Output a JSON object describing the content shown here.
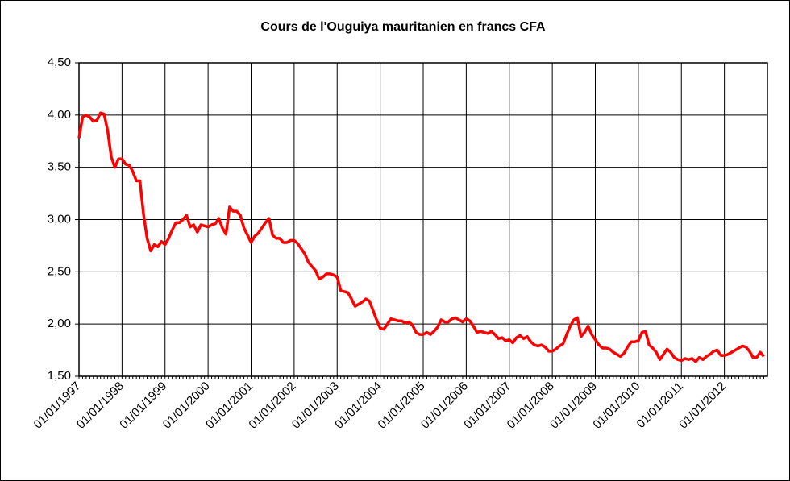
{
  "chart_data": {
    "type": "line",
    "title": "Cours de l'Ouguiya mauritanien en francs CFA",
    "categories": [
      "01/01/1997",
      null,
      null,
      null,
      null,
      null,
      null,
      null,
      null,
      null,
      null,
      null,
      "01/01/1998",
      null,
      null,
      null,
      null,
      null,
      null,
      null,
      null,
      null,
      null,
      null,
      "01/01/1999",
      null,
      null,
      null,
      null,
      null,
      null,
      null,
      null,
      null,
      null,
      null,
      "01/01/2000",
      null,
      null,
      null,
      null,
      null,
      null,
      null,
      null,
      null,
      null,
      null,
      "01/01/2001",
      null,
      null,
      null,
      null,
      null,
      null,
      null,
      null,
      null,
      null,
      null,
      "01/01/2002",
      null,
      null,
      null,
      null,
      null,
      null,
      null,
      null,
      null,
      null,
      null,
      "01/01/2003",
      null,
      null,
      null,
      null,
      null,
      null,
      null,
      null,
      null,
      null,
      null,
      "01/01/2004",
      null,
      null,
      null,
      null,
      null,
      null,
      null,
      null,
      null,
      null,
      null,
      "01/01/2005",
      null,
      null,
      null,
      null,
      null,
      null,
      null,
      null,
      null,
      null,
      null,
      "01/01/2006",
      null,
      null,
      null,
      null,
      null,
      null,
      null,
      null,
      null,
      null,
      null,
      "01/01/2007",
      null,
      null,
      null,
      null,
      null,
      null,
      null,
      null,
      null,
      null,
      null,
      "01/01/2008",
      null,
      null,
      null,
      null,
      null,
      null,
      null,
      null,
      null,
      null,
      null,
      "01/01/2009",
      null,
      null,
      null,
      null,
      null,
      null,
      null,
      null,
      null,
      null,
      null,
      "01/01/2010",
      null,
      null,
      null,
      null,
      null,
      null,
      null,
      null,
      null,
      null,
      null,
      "01/01/2011",
      null,
      null,
      null,
      null,
      null,
      null,
      null,
      null,
      null,
      null,
      null,
      "01/01/2012",
      null,
      null,
      null,
      null,
      null,
      null,
      null,
      null,
      null,
      null,
      null
    ],
    "values": [
      3.78,
      3.98,
      4.0,
      3.98,
      3.94,
      3.95,
      4.02,
      4.01,
      3.85,
      3.6,
      3.5,
      3.58,
      3.58,
      3.53,
      3.52,
      3.46,
      3.37,
      3.37,
      3.05,
      2.82,
      2.7,
      2.76,
      2.74,
      2.79,
      2.76,
      2.82,
      2.9,
      2.97,
      2.97,
      3.0,
      3.04,
      2.93,
      2.95,
      2.88,
      2.95,
      2.94,
      2.93,
      2.95,
      2.96,
      3.01,
      2.92,
      2.86,
      3.12,
      3.08,
      3.08,
      3.04,
      2.92,
      2.85,
      2.78,
      2.84,
      2.87,
      2.92,
      2.97,
      3.01,
      2.85,
      2.82,
      2.82,
      2.78,
      2.78,
      2.8,
      2.8,
      2.77,
      2.72,
      2.67,
      2.59,
      2.55,
      2.51,
      2.43,
      2.45,
      2.48,
      2.48,
      2.47,
      2.45,
      2.32,
      2.31,
      2.3,
      2.24,
      2.17,
      2.19,
      2.21,
      2.24,
      2.22,
      2.13,
      2.04,
      1.96,
      1.95,
      2.0,
      2.05,
      2.04,
      2.03,
      2.03,
      2.01,
      2.02,
      1.99,
      1.92,
      1.9,
      1.9,
      1.92,
      1.9,
      1.93,
      1.97,
      2.04,
      2.02,
      2.02,
      2.05,
      2.06,
      2.04,
      2.02,
      2.05,
      2.03,
      1.98,
      1.92,
      1.93,
      1.92,
      1.91,
      1.93,
      1.9,
      1.86,
      1.87,
      1.84,
      1.85,
      1.82,
      1.87,
      1.89,
      1.86,
      1.88,
      1.83,
      1.8,
      1.79,
      1.8,
      1.78,
      1.74,
      1.74,
      1.76,
      1.79,
      1.81,
      1.9,
      1.98,
      2.04,
      2.06,
      1.88,
      1.92,
      1.98,
      1.9,
      1.85,
      1.8,
      1.77,
      1.77,
      1.76,
      1.73,
      1.71,
      1.69,
      1.72,
      1.78,
      1.83,
      1.83,
      1.84,
      1.92,
      1.93,
      1.8,
      1.77,
      1.73,
      1.66,
      1.71,
      1.76,
      1.73,
      1.68,
      1.66,
      1.65,
      1.67,
      1.66,
      1.67,
      1.64,
      1.68,
      1.66,
      1.69,
      1.71,
      1.74,
      1.75,
      1.7,
      1.7,
      1.71,
      1.73,
      1.75,
      1.77,
      1.79,
      1.78,
      1.74,
      1.68,
      1.68,
      1.73,
      1.69
    ],
    "color": "#ff0000",
    "ylim": [
      1.5,
      4.5
    ],
    "yticks": [
      {
        "value": 1.5,
        "label": "1,50"
      },
      {
        "value": 2,
        "label": "2,00"
      },
      {
        "value": 2.5,
        "label": "2,50"
      },
      {
        "value": 3,
        "label": "3,00"
      },
      {
        "value": 3.5,
        "label": "3,50"
      },
      {
        "value": 4,
        "label": "4,00"
      },
      {
        "value": 4.5,
        "label": "4,50"
      }
    ],
    "grid": true
  }
}
